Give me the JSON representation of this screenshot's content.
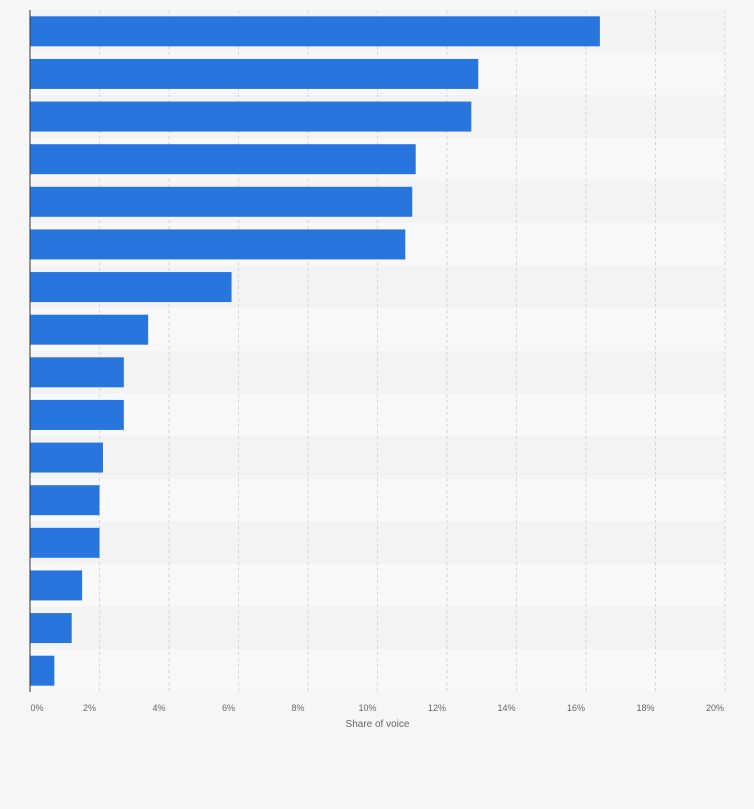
{
  "chart_data": {
    "type": "bar",
    "orientation": "horizontal",
    "title": "",
    "xlabel": "Share of voice",
    "ylabel": "",
    "xlim": [
      0,
      20
    ],
    "x_ticks": [
      0,
      2,
      4,
      6,
      8,
      10,
      12,
      14,
      16,
      18,
      20
    ],
    "tick_suffix": "%",
    "grid": true,
    "categories": [
      "",
      "",
      "",
      "",
      "",
      "",
      "",
      "",
      "",
      "",
      "",
      "",
      "",
      "",
      "",
      ""
    ],
    "values": [
      16.4,
      12.9,
      12.7,
      11.1,
      11.0,
      10.8,
      5.8,
      3.4,
      2.7,
      2.7,
      2.1,
      2.0,
      2.0,
      1.5,
      1.2,
      0.7
    ],
    "bar_color": "#2876dd"
  }
}
